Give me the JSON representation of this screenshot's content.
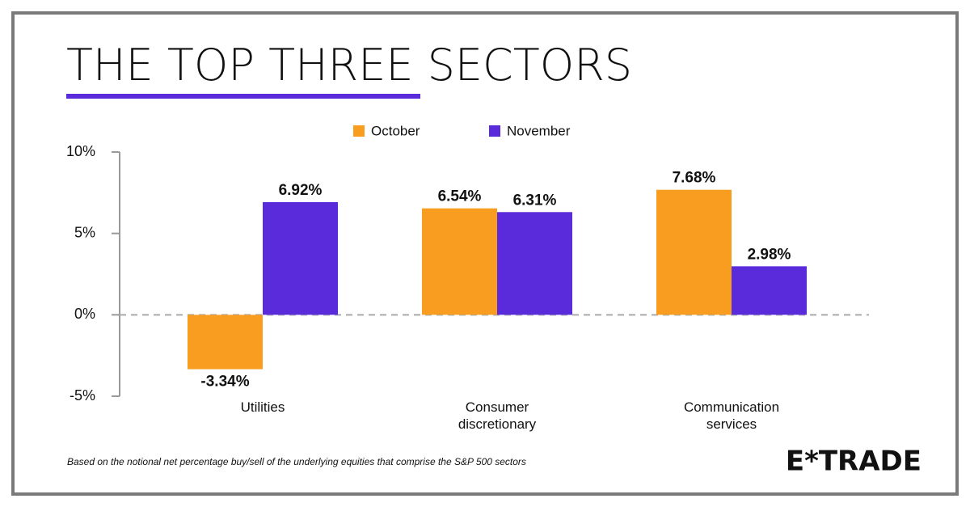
{
  "chart_data": {
    "type": "bar",
    "title": "THE TOP THREE SECTORS",
    "categories": [
      "Utilities",
      "Consumer discretionary",
      "Communication services"
    ],
    "series": [
      {
        "name": "October",
        "color": "#f89d1f",
        "values": [
          -3.34,
          6.54,
          7.68
        ],
        "value_labels": [
          "-3.34%",
          "6.54%",
          "7.68%"
        ]
      },
      {
        "name": "November",
        "color": "#5a2bdb",
        "values": [
          6.92,
          6.31,
          2.98
        ],
        "value_labels": [
          "6.92%",
          "6.31%",
          "2.98%"
        ]
      }
    ],
    "ylim": [
      -5,
      10
    ],
    "yticks": [
      {
        "value": 10,
        "label": "10%"
      },
      {
        "value": 5,
        "label": "5%"
      },
      {
        "value": 0,
        "label": "0%"
      },
      {
        "value": -5,
        "label": "-5%"
      }
    ],
    "footnote": "Based on the notional net percentage buy/sell of the underlying equities that comprise the S&P 500 sectors",
    "logo": "E*TRADE"
  }
}
